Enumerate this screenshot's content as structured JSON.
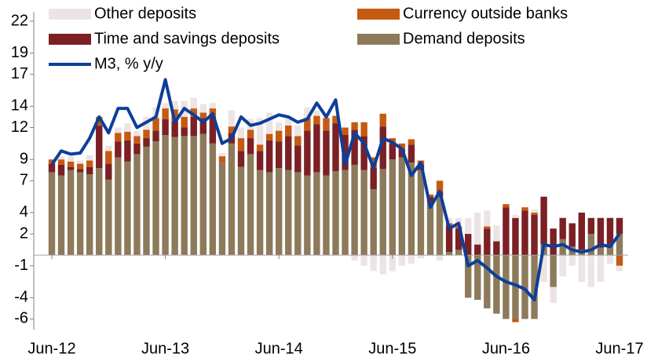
{
  "chart_data": {
    "type": "bar",
    "stacked": true,
    "categories": [
      "Jun-12",
      null,
      null,
      null,
      null,
      null,
      null,
      null,
      null,
      null,
      null,
      null,
      "Jun-13",
      null,
      null,
      null,
      null,
      null,
      null,
      null,
      null,
      null,
      null,
      null,
      "Jun-14",
      null,
      null,
      null,
      null,
      null,
      null,
      null,
      null,
      null,
      null,
      null,
      "Jun-15",
      null,
      null,
      null,
      null,
      null,
      null,
      null,
      null,
      null,
      null,
      null,
      "Jun-16",
      null,
      null,
      null,
      null,
      null,
      null,
      null,
      null,
      null,
      null,
      null,
      "Jun-17"
    ],
    "ylim": [
      -7,
      23
    ],
    "yticks": [
      22,
      19,
      17,
      14,
      12,
      9,
      7,
      4,
      2,
      -1,
      -4,
      -6
    ],
    "series": [
      {
        "name": "Demand deposits",
        "color": "#8c7a5b",
        "values": [
          7.8,
          7.5,
          8.0,
          7.8,
          7.6,
          8.2,
          7.1,
          9.2,
          8.8,
          9.5,
          10.2,
          10.7,
          11.3,
          11.1,
          11.2,
          11.2,
          11.4,
          10.5,
          8.7,
          10.5,
          8.3,
          9.5,
          8.0,
          7.8,
          8.2,
          8.0,
          7.8,
          7.5,
          7.8,
          7.5,
          7.9,
          8.0,
          8.5,
          8.0,
          6.2,
          8.1,
          9.0,
          9.2,
          8.7,
          8.0,
          5.0,
          5.5,
          0.3,
          0.5,
          -4.0,
          -4.2,
          -5.0,
          -5.5,
          -6.0,
          -6.0,
          -6.0,
          -6.0,
          1.0,
          -3.0,
          1.5,
          0.8,
          0.5,
          2.0,
          0.7,
          1.0,
          2.0
        ]
      },
      {
        "name": "Time and savings deposits",
        "color": "#7b2024",
        "values": [
          0.8,
          1.0,
          0.3,
          0.3,
          0.7,
          4.0,
          1.5,
          1.5,
          2.0,
          1.0,
          0.8,
          1.0,
          1.5,
          1.5,
          0.8,
          1.8,
          1.5,
          2.5,
          0,
          1.0,
          1.5,
          1.5,
          1.8,
          3.0,
          2.5,
          3.2,
          2.5,
          4.2,
          4.5,
          4.2,
          4.5,
          3.3,
          3.3,
          3.2,
          2.0,
          4.0,
          1.5,
          0.8,
          1.7,
          0.5,
          0.5,
          0.5,
          2.5,
          2.0,
          2.0,
          1.0,
          2.5,
          1.3,
          4.5,
          3.5,
          4.2,
          3.8,
          4.5,
          2.5,
          2.0,
          2.2,
          3.5,
          1.5,
          2.8,
          2.5,
          1.5
        ]
      },
      {
        "name": "Currency outside banks",
        "color": "#c55a11",
        "values": [
          0.4,
          0.5,
          0.5,
          0.5,
          0.6,
          0.8,
          1.2,
          0.8,
          0.8,
          0.7,
          0.8,
          1.2,
          1.0,
          1.1,
          1.0,
          0.8,
          0.5,
          0.8,
          0.6,
          0.6,
          1.2,
          0.8,
          0.6,
          0.6,
          1.0,
          1.0,
          0.9,
          1.2,
          0.8,
          1.2,
          0.7,
          0.7,
          0.7,
          1.3,
          1.0,
          1.2,
          0.5,
          0.5,
          0.5,
          0.4,
          0.2,
          1.0,
          0.2,
          0.2,
          0,
          0,
          0.2,
          0,
          0.3,
          -0.3,
          0.3,
          0.2,
          0,
          0,
          0,
          0,
          0,
          0,
          0,
          0,
          -1.0
        ]
      },
      {
        "name": "Other deposits",
        "color": "#ece4e4",
        "values": [
          0,
          0.3,
          0.5,
          0.3,
          0.5,
          0,
          0.5,
          0.5,
          0.8,
          0.5,
          1.2,
          1.0,
          0.5,
          0.8,
          1.5,
          1.0,
          0.8,
          0.5,
          0.3,
          1.5,
          1.0,
          1.0,
          2.5,
          2.0,
          0.8,
          0.8,
          1.0,
          1.0,
          0.5,
          0,
          0,
          0,
          -0.5,
          -1.0,
          -1.5,
          -1.8,
          -1.5,
          -1.0,
          -0.8,
          -0.3,
          0,
          -0.5,
          0.5,
          0.8,
          1.5,
          3.0,
          1.5,
          1.5,
          0,
          0.3,
          0,
          0.3,
          -2.5,
          -1.5,
          -2.0,
          -1.0,
          -2.5,
          -3.0,
          -2.5,
          -0.8,
          -0.5
        ]
      },
      {
        "name": "M3, % y/y",
        "color": "#0d3e99",
        "type": "line",
        "values": [
          8.5,
          9.8,
          9.5,
          9.6,
          11.0,
          13.0,
          11.5,
          13.8,
          13.8,
          12.0,
          12.5,
          13.0,
          16.5,
          12.5,
          13.8,
          13.2,
          12.5,
          13.3,
          10.5,
          11.0,
          13.0,
          12.2,
          12.4,
          12.8,
          13.2,
          13.0,
          12.5,
          12.8,
          14.3,
          13.0,
          14.6,
          8.5,
          11.5,
          10.5,
          8.2,
          11.0,
          10.6,
          10.0,
          7.5,
          8.7,
          4.5,
          6.0,
          2.5,
          3.0,
          -1.0,
          -0.5,
          -1.2,
          -2.0,
          -2.5,
          -2.8,
          -3.2,
          -4.2,
          1.0,
          0.8,
          1.0,
          0.5,
          0.3,
          0.5,
          1.0,
          0.8,
          2.0
        ]
      }
    ]
  }
}
